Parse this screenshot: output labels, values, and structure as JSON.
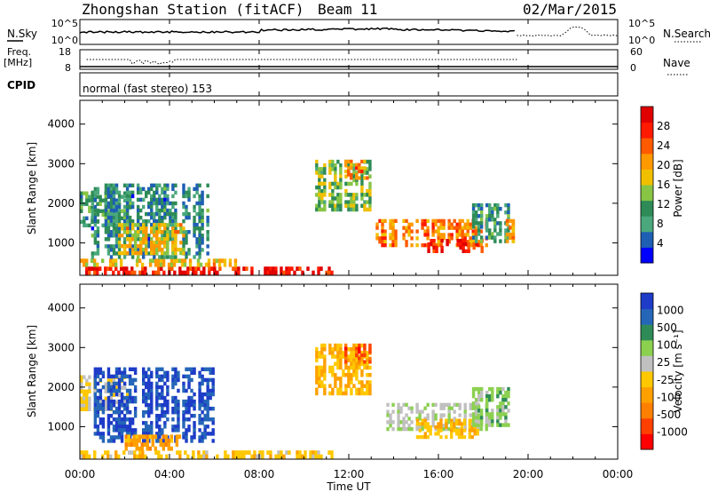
{
  "header": {
    "station": "Zhongshan Station (fitACF)",
    "beam": "Beam 11",
    "date": "02/Mar/2015"
  },
  "noise_panel": {
    "left_label": "N.Sky",
    "left_ticks": [
      "10^5",
      "10^0"
    ],
    "right_label": "N.Search",
    "right_ticks": [
      "10^5",
      "10^0"
    ]
  },
  "freq_panel": {
    "left_label_1": "Freq.",
    "left_label_2": "[MHz]",
    "left_ticks": [
      "18",
      "8"
    ],
    "right_label": "Nave",
    "right_ticks": [
      "60",
      "0"
    ]
  },
  "cpid_panel": {
    "label": "CPID",
    "mode_text": "normal (fast stereo) 153"
  },
  "power_panel": {
    "ylabel": "Slant Range [km]",
    "colorbar_label": "Power [dB]",
    "colorbar_ticks": [
      "28",
      "24",
      "20",
      "16",
      "12",
      "8",
      "4"
    ],
    "colors": [
      "#0000ff",
      "#1e5fb4",
      "#4aa87c",
      "#2e8b57",
      "#88c544",
      "#f0c000",
      "#ff9900",
      "#ff5a00",
      "#ff1a00",
      "#e00000"
    ]
  },
  "velocity_panel": {
    "ylabel": "Slant Range [km]",
    "colorbar_label": "Velocity [m s⁻¹]",
    "colorbar_ticks": [
      "1000",
      "500",
      "100",
      "25",
      "-25",
      "-100",
      "-500",
      "-1000"
    ],
    "colors": [
      "#ff0000",
      "#ff4000",
      "#ff7f00",
      "#ffa000",
      "#ffc800",
      "#c0c0c0",
      "#8cd050",
      "#2e8b57",
      "#2566b8",
      "#1e3cc8"
    ]
  },
  "time_axis": {
    "ticks": [
      "00:00",
      "04:00",
      "08:00",
      "12:00",
      "16:00",
      "20:00",
      "00:00"
    ],
    "label": "Time UT"
  },
  "chart_data": [
    {
      "type": "heatmap",
      "name": "power",
      "title": "Zhongshan Station (fitACF) Beam 11",
      "xlabel": "Time UT",
      "ylabel": "Slant Range [km]",
      "xlim": [
        0,
        24
      ],
      "ylim": [
        180,
        4600
      ],
      "colorbar": {
        "label": "Power [dB]",
        "range": [
          0,
          32
        ]
      },
      "regions": [
        {
          "t0": 0.0,
          "t1": 11.3,
          "r0": 200,
          "r1": 400,
          "value": 28
        },
        {
          "t0": 0.0,
          "t1": 7.0,
          "r0": 400,
          "r1": 600,
          "value": 18
        },
        {
          "t0": 0.0,
          "t1": 2.3,
          "r0": 1400,
          "r1": 2300,
          "value": 10
        },
        {
          "t0": 0.5,
          "t1": 6.0,
          "r0": 600,
          "r1": 2500,
          "value": 8
        },
        {
          "t0": 1.7,
          "t1": 4.8,
          "r0": 700,
          "r1": 1500,
          "value": 18
        },
        {
          "t0": 10.5,
          "t1": 13.0,
          "r0": 1800,
          "r1": 3100,
          "value": 14
        },
        {
          "t0": 11.8,
          "t1": 13.0,
          "r0": 2600,
          "r1": 3100,
          "value": 22
        },
        {
          "t0": 13.2,
          "t1": 18.2,
          "r0": 900,
          "r1": 1600,
          "value": 22
        },
        {
          "t0": 15.5,
          "t1": 18.0,
          "r0": 750,
          "r1": 1100,
          "value": 28
        },
        {
          "t0": 17.5,
          "t1": 19.3,
          "r0": 1000,
          "r1": 2000,
          "value": 10
        },
        {
          "t0": 19.0,
          "t1": 19.4,
          "r0": 1000,
          "r1": 1600,
          "value": 20
        }
      ]
    },
    {
      "type": "heatmap",
      "name": "velocity",
      "xlabel": "Time UT",
      "ylabel": "Slant Range [km]",
      "xlim": [
        0,
        24
      ],
      "ylim": [
        180,
        4600
      ],
      "colorbar": {
        "label": "Velocity [m s⁻¹]",
        "range": [
          -1000,
          1000
        ]
      },
      "regions": [
        {
          "t0": 0.0,
          "t1": 11.3,
          "r0": 200,
          "r1": 400,
          "value": -100
        },
        {
          "t0": 0.0,
          "t1": 2.3,
          "r0": 1400,
          "r1": 2300,
          "value": 10
        },
        {
          "t0": 0.5,
          "t1": 6.0,
          "r0": 600,
          "r1": 2500,
          "value": 800
        },
        {
          "t0": 2.0,
          "t1": 4.5,
          "r0": 400,
          "r1": 800,
          "value": -300
        },
        {
          "t0": 10.5,
          "t1": 13.0,
          "r0": 1800,
          "r1": 3100,
          "value": -200
        },
        {
          "t0": 11.8,
          "t1": 13.0,
          "r0": 2600,
          "r1": 3100,
          "value": -700
        },
        {
          "t0": 13.2,
          "t1": 18.2,
          "r0": 900,
          "r1": 1600,
          "value": 150
        },
        {
          "t0": 15.0,
          "t1": 17.8,
          "r0": 700,
          "r1": 1200,
          "value": -150
        },
        {
          "t0": 17.5,
          "t1": 19.3,
          "r0": 1000,
          "r1": 2000,
          "value": 300
        }
      ]
    }
  ]
}
